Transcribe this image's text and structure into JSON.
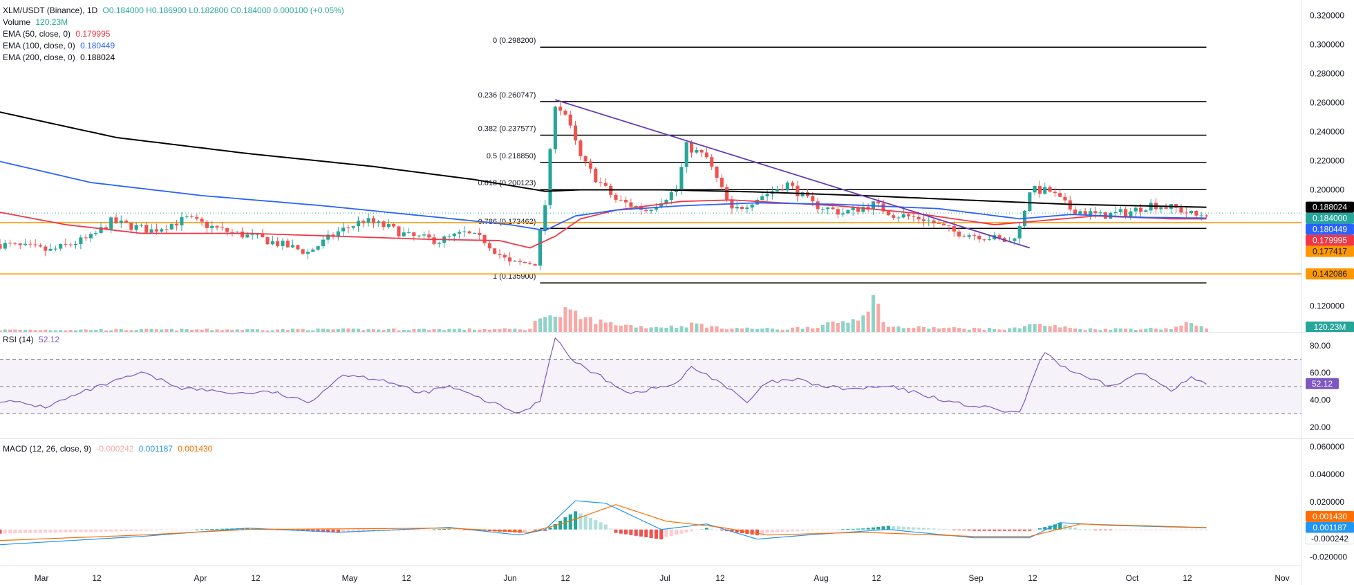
{
  "header": {
    "symbol": "XLM/USDT (Binance), 1D",
    "ohlc": "O0.184000 H0.186900 L0.182800 C0.184000 0.000100 (+0.05%)",
    "volume_label": "Volume",
    "volume_value": "120.23M",
    "ema50_label": "EMA (50, close, 0)",
    "ema50_value": "0.179995",
    "ema100_label": "EMA (100, close, 0)",
    "ema100_value": "0.180449",
    "ema200_label": "EMA (200, close, 0)",
    "ema200_value": "0.188024",
    "rsi_label": "RSI (14)",
    "rsi_value": "52.12",
    "macd_label": "MACD (12, 26, close, 9)",
    "macd_hist": "-0.000242",
    "macd_line": "0.001187",
    "macd_signal": "0.001430"
  },
  "colors": {
    "up": "#26a69a",
    "down": "#ef5350",
    "vol_up": "#8ed3c7",
    "vol_down": "#f7a9a7",
    "ema50": "#f23645",
    "ema100": "#2962ff",
    "ema200": "#000000",
    "rsi": "#7e57c2",
    "macd": "#2196f3",
    "signal": "#ff6d00",
    "trendline": "#673ab7",
    "horizontal": "#ff9800",
    "fib": "#000000"
  },
  "chart_data": [
    {
      "type": "candlestick",
      "x_ticks": [
        "Mar",
        "12",
        "Apr",
        "12",
        "May",
        "12",
        "Jun",
        "12",
        "Jul",
        "12",
        "Aug",
        "12",
        "Sep",
        "12",
        "Oct",
        "12",
        "Nov"
      ],
      "x_start": "2024-02-21",
      "x_end": "2024-11-01",
      "y_ticks": [
        "0.320000",
        "0.300000",
        "0.280000",
        "0.260000",
        "0.240000",
        "0.220000",
        "0.200000",
        "0.120000"
      ],
      "ylim": [
        0.105,
        0.324
      ],
      "last_price": 0.184,
      "series": [
        {
          "name": "Price",
          "anchors": [
            [
              "2024-02-21",
              0.1625
            ],
            [
              "2024-03-02",
              0.158
            ],
            [
              "2024-03-10",
              0.167
            ],
            [
              "2024-03-14",
              0.178
            ],
            [
              "2024-03-22",
              0.172
            ],
            [
              "2024-03-29",
              0.18
            ],
            [
              "2024-04-05",
              0.172
            ],
            [
              "2024-04-13",
              0.166
            ],
            [
              "2024-04-22",
              0.157
            ],
            [
              "2024-04-28",
              0.171
            ],
            [
              "2024-05-03",
              0.179
            ],
            [
              "2024-05-08",
              0.174
            ],
            [
              "2024-05-12",
              0.168
            ],
            [
              "2024-05-18",
              0.165
            ],
            [
              "2024-05-23",
              0.17
            ],
            [
              "2024-05-27",
              0.165
            ],
            [
              "2024-06-01",
              0.149
            ],
            [
              "2024-06-06",
              0.15
            ],
            [
              "2024-06-08",
              0.19
            ],
            [
              "2024-06-10",
              0.26
            ],
            [
              "2024-06-12",
              0.252
            ],
            [
              "2024-06-15",
              0.222
            ],
            [
              "2024-06-18",
              0.208
            ],
            [
              "2024-06-22",
              0.193
            ],
            [
              "2024-06-28",
              0.186
            ],
            [
              "2024-07-04",
              0.2
            ],
            [
              "2024-07-06",
              0.23
            ],
            [
              "2024-07-10",
              0.222
            ],
            [
              "2024-07-15",
              0.185
            ],
            [
              "2024-07-21",
              0.196
            ],
            [
              "2024-07-26",
              0.204
            ],
            [
              "2024-07-31",
              0.19
            ],
            [
              "2024-08-06",
              0.184
            ],
            [
              "2024-08-12",
              0.19
            ],
            [
              "2024-08-16",
              0.183
            ],
            [
              "2024-08-22",
              0.18
            ],
            [
              "2024-08-28",
              0.171
            ],
            [
              "2024-09-03",
              0.168
            ],
            [
              "2024-09-08",
              0.164
            ],
            [
              "2024-09-10",
              0.174
            ],
            [
              "2024-09-12",
              0.2
            ],
            [
              "2024-09-16",
              0.199
            ],
            [
              "2024-09-20",
              0.187
            ],
            [
              "2024-09-26",
              0.182
            ],
            [
              "2024-10-02",
              0.185
            ],
            [
              "2024-10-06",
              0.19
            ],
            [
              "2024-10-11",
              0.187
            ],
            [
              "2024-10-15",
              0.182
            ],
            [
              "2024-10-17",
              0.184
            ]
          ]
        },
        {
          "name": "EMA (50, close, 0)",
          "anchors": [
            [
              "2024-02-21",
              0.1845
            ],
            [
              "2024-03-05",
              0.176
            ],
            [
              "2024-03-20",
              0.17
            ],
            [
              "2024-04-10",
              0.17
            ],
            [
              "2024-04-28",
              0.168
            ],
            [
              "2024-05-15",
              0.166
            ],
            [
              "2024-05-30",
              0.165
            ],
            [
              "2024-06-05",
              0.16
            ],
            [
              "2024-06-10",
              0.168
            ],
            [
              "2024-06-15",
              0.18
            ],
            [
              "2024-06-22",
              0.186
            ],
            [
              "2024-07-05",
              0.192
            ],
            [
              "2024-07-15",
              0.193
            ],
            [
              "2024-07-25",
              0.191
            ],
            [
              "2024-08-05",
              0.189
            ],
            [
              "2024-08-20",
              0.184
            ],
            [
              "2024-09-05",
              0.176
            ],
            [
              "2024-09-12",
              0.178
            ],
            [
              "2024-09-25",
              0.182
            ],
            [
              "2024-10-10",
              0.18
            ],
            [
              "2024-10-17",
              0.18
            ]
          ]
        },
        {
          "name": "EMA (100, close, 0)",
          "anchors": [
            [
              "2024-02-21",
              0.2195
            ],
            [
              "2024-03-10",
              0.205
            ],
            [
              "2024-04-01",
              0.196
            ],
            [
              "2024-04-25",
              0.189
            ],
            [
              "2024-05-15",
              0.182
            ],
            [
              "2024-06-01",
              0.176
            ],
            [
              "2024-06-08",
              0.172
            ],
            [
              "2024-06-14",
              0.182
            ],
            [
              "2024-06-22",
              0.186
            ],
            [
              "2024-07-05",
              0.189
            ],
            [
              "2024-07-20",
              0.191
            ],
            [
              "2024-08-05",
              0.19
            ],
            [
              "2024-08-25",
              0.187
            ],
            [
              "2024-09-10",
              0.18
            ],
            [
              "2024-09-20",
              0.183
            ],
            [
              "2024-10-05",
              0.181
            ],
            [
              "2024-10-17",
              0.1805
            ]
          ]
        },
        {
          "name": "EMA (200, close, 0)",
          "anchors": [
            [
              "2024-02-21",
              0.2535
            ],
            [
              "2024-03-15",
              0.236
            ],
            [
              "2024-04-10",
              0.225
            ],
            [
              "2024-05-05",
              0.216
            ],
            [
              "2024-05-25",
              0.207
            ],
            [
              "2024-06-08",
              0.199
            ],
            [
              "2024-06-15",
              0.2
            ],
            [
              "2024-07-01",
              0.2
            ],
            [
              "2024-07-20",
              0.1985
            ],
            [
              "2024-08-10",
              0.196
            ],
            [
              "2024-08-30",
              0.193
            ],
            [
              "2024-09-20",
              0.19
            ],
            [
              "2024-10-17",
              0.188
            ]
          ]
        }
      ],
      "volume": {
        "anchors": [
          [
            "2024-02-21",
            4
          ],
          [
            "2024-06-05",
            5
          ],
          [
            "2024-06-08",
            32
          ],
          [
            "2024-06-10",
            20
          ],
          [
            "2024-06-12",
            30
          ],
          [
            "2024-06-15",
            22
          ],
          [
            "2024-06-20",
            14
          ],
          [
            "2024-06-28",
            8
          ],
          [
            "2024-07-05",
            9
          ],
          [
            "2024-07-08",
            13
          ],
          [
            "2024-07-12",
            7
          ],
          [
            "2024-07-25",
            5
          ],
          [
            "2024-08-02",
            10
          ],
          [
            "2024-08-08",
            19
          ],
          [
            "2024-08-10",
            30
          ],
          [
            "2024-08-12",
            48
          ],
          [
            "2024-08-15",
            8
          ],
          [
            "2024-09-08",
            5
          ],
          [
            "2024-09-12",
            12
          ],
          [
            "2024-09-16",
            10
          ],
          [
            "2024-09-22",
            5
          ],
          [
            "2024-10-10",
            6
          ],
          [
            "2024-10-14",
            14
          ],
          [
            "2024-10-17",
            8
          ]
        ]
      },
      "fibonacci": [
        {
          "label": "0 (0.298200)",
          "value": 0.2982
        },
        {
          "label": "0.236 (0.260747)",
          "value": 0.260747
        },
        {
          "label": "0.382 (0.237577)",
          "value": 0.237577
        },
        {
          "label": "0.5 (0.218850)",
          "value": 0.21885
        },
        {
          "label": "0.618 (0.200123)",
          "value": 0.200123
        },
        {
          "label": "0.786 (0.173462)",
          "value": 0.173462
        },
        {
          "label": "1 (0.135900)",
          "value": 0.1359
        }
      ],
      "horizontal_levels": [
        0.177417,
        0.142086
      ],
      "trendline": [
        [
          "2024-06-10",
          0.262
        ],
        [
          "2024-09-12",
          0.16
        ]
      ],
      "price_badges": [
        {
          "label": "0.188024",
          "color": "#000000"
        },
        {
          "label": "0.184000",
          "color": "#26a69a"
        },
        {
          "label": "0.180449",
          "color": "#2962ff"
        },
        {
          "label": "0.179995",
          "color": "#f23645"
        },
        {
          "label": "0.177417",
          "color": "#ff9800"
        },
        {
          "label": "0.142086",
          "color": "#ff9800"
        }
      ],
      "volume_badge": "120.23M"
    },
    {
      "type": "line",
      "name": "RSI (14)",
      "y_ticks": [
        "80.00",
        "60.00",
        "40.00",
        "20.00"
      ],
      "ylim": [
        14,
        88
      ],
      "bands": [
        70,
        50,
        30
      ],
      "anchors": [
        [
          "2024-02-21",
          40
        ],
        [
          "2024-03-01",
          35
        ],
        [
          "2024-03-10",
          48
        ],
        [
          "2024-03-20",
          60
        ],
        [
          "2024-03-28",
          49
        ],
        [
          "2024-04-08",
          45
        ],
        [
          "2024-04-15",
          46
        ],
        [
          "2024-04-22",
          38
        ],
        [
          "2024-04-29",
          59
        ],
        [
          "2024-05-07",
          55
        ],
        [
          "2024-05-14",
          45
        ],
        [
          "2024-05-20",
          50
        ],
        [
          "2024-05-27",
          40
        ],
        [
          "2024-06-03",
          30
        ],
        [
          "2024-06-07",
          40
        ],
        [
          "2024-06-10",
          87
        ],
        [
          "2024-06-13",
          70
        ],
        [
          "2024-06-20",
          55
        ],
        [
          "2024-06-25",
          45
        ],
        [
          "2024-07-04",
          52
        ],
        [
          "2024-07-07",
          64
        ],
        [
          "2024-07-12",
          55
        ],
        [
          "2024-07-18",
          38
        ],
        [
          "2024-07-22",
          53
        ],
        [
          "2024-07-28",
          55
        ],
        [
          "2024-08-02",
          50
        ],
        [
          "2024-08-08",
          48
        ],
        [
          "2024-08-15",
          50
        ],
        [
          "2024-08-21",
          45
        ],
        [
          "2024-08-28",
          38
        ],
        [
          "2024-09-04",
          34
        ],
        [
          "2024-09-10",
          30
        ],
        [
          "2024-09-12",
          50
        ],
        [
          "2024-09-15",
          76
        ],
        [
          "2024-09-18",
          66
        ],
        [
          "2024-09-22",
          58
        ],
        [
          "2024-09-28",
          50
        ],
        [
          "2024-10-04",
          60
        ],
        [
          "2024-10-10",
          48
        ],
        [
          "2024-10-14",
          56
        ],
        [
          "2024-10-17",
          52
        ]
      ]
    },
    {
      "type": "line",
      "name": "MACD (12, 26, close, 9)",
      "y_ticks": [
        "0.060000",
        "0.040000",
        "0.020000",
        "-0.020000"
      ],
      "ylim": [
        -0.0352,
        0.063
      ],
      "series": [
        {
          "name": "MACD",
          "anchors": [
            [
              "2024-02-21",
              -0.011
            ],
            [
              "2024-03-20",
              -0.005
            ],
            [
              "2024-04-10",
              0.001
            ],
            [
              "2024-04-28",
              -0.002
            ],
            [
              "2024-05-20",
              0.0015
            ],
            [
              "2024-06-03",
              -0.004
            ],
            [
              "2024-06-08",
              0.0
            ],
            [
              "2024-06-14",
              0.0208
            ],
            [
              "2024-06-20",
              0.019
            ],
            [
              "2024-07-01",
              0.0
            ],
            [
              "2024-07-10",
              0.004
            ],
            [
              "2024-07-20",
              -0.007
            ],
            [
              "2024-07-30",
              -0.004
            ],
            [
              "2024-08-15",
              0.0
            ],
            [
              "2024-09-01",
              -0.006
            ],
            [
              "2024-09-12",
              -0.006
            ],
            [
              "2024-09-18",
              0.005
            ],
            [
              "2024-09-28",
              0.003
            ],
            [
              "2024-10-17",
              0.001187
            ]
          ]
        },
        {
          "name": "Signal",
          "anchors": [
            [
              "2024-02-21",
              -0.008
            ],
            [
              "2024-03-20",
              -0.004
            ],
            [
              "2024-04-10",
              0.0
            ],
            [
              "2024-05-20",
              0.001
            ],
            [
              "2024-06-05",
              -0.002
            ],
            [
              "2024-06-12",
              0.005
            ],
            [
              "2024-06-22",
              0.018
            ],
            [
              "2024-07-02",
              0.006
            ],
            [
              "2024-07-12",
              0.002
            ],
            [
              "2024-07-22",
              -0.004
            ],
            [
              "2024-08-10",
              -0.002
            ],
            [
              "2024-09-01",
              -0.005
            ],
            [
              "2024-09-12",
              -0.005
            ],
            [
              "2024-09-22",
              0.004
            ],
            [
              "2024-10-17",
              0.00143
            ]
          ]
        }
      ]
    }
  ]
}
